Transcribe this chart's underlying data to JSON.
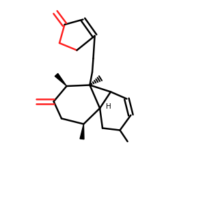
{
  "background_color": "#ffffff",
  "bond_color": "#000000",
  "oxygen_color": "#ff2020",
  "line_width": 1.8,
  "figsize": [
    3.0,
    3.0
  ],
  "dpi": 100
}
